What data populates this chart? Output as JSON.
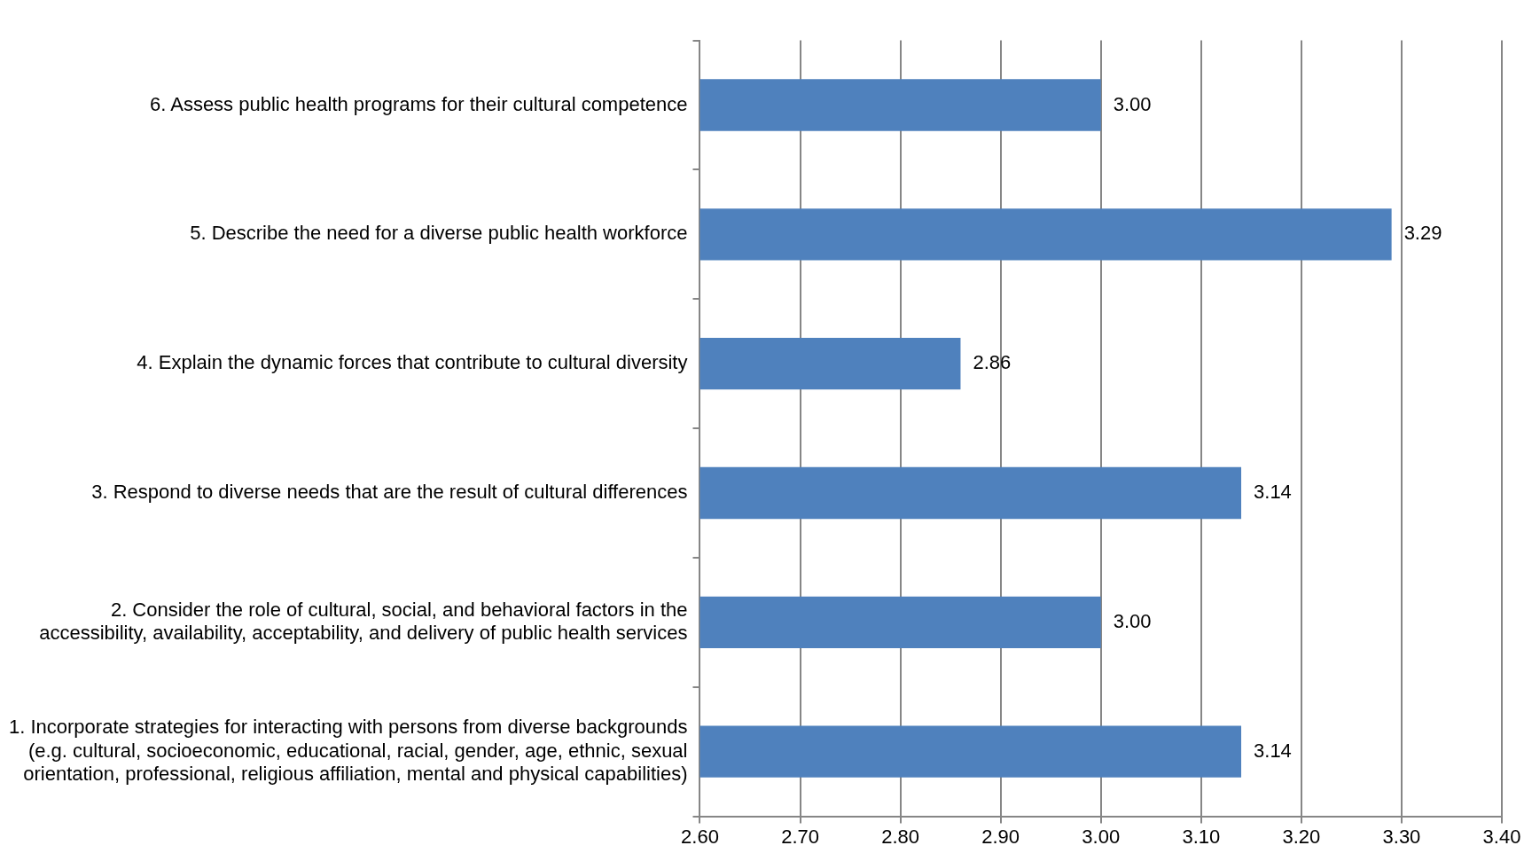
{
  "chart_data": {
    "type": "bar",
    "orientation": "horizontal",
    "categories": [
      "6. Assess public health programs for their cultural competence",
      "5. Describe the need for a diverse public health workforce",
      "4. Explain the dynamic forces that contribute to cultural diversity",
      "3. Respond to diverse needs that are the result of cultural differences",
      "2. Consider the role of cultural, social, and behavioral factors in the accessibility, availability, acceptability, and delivery of public health services",
      "1. Incorporate strategies for interacting with persons from diverse backgrounds (e.g. cultural, socioeconomic, educational, racial, gender, age, ethnic, sexual orientation, professional, religious affiliation, mental and physical capabilities)"
    ],
    "values": [
      3.0,
      3.29,
      2.86,
      3.14,
      3.0,
      3.14
    ],
    "value_labels": [
      "3.00",
      "3.29",
      "2.86",
      "3.14",
      "3.00",
      "3.14"
    ],
    "color": "#4f81bd",
    "xlim": [
      2.6,
      3.4
    ],
    "xticks": [
      {
        "value": 2.6,
        "label": "2.60"
      },
      {
        "value": 2.7,
        "label": "2.70"
      },
      {
        "value": 2.8,
        "label": "2.80"
      },
      {
        "value": 2.9,
        "label": "2.90"
      },
      {
        "value": 3.0,
        "label": "3.00"
      },
      {
        "value": 3.1,
        "label": "3.10"
      },
      {
        "value": 3.2,
        "label": "3.20"
      },
      {
        "value": 3.3,
        "label": "3.30"
      },
      {
        "value": 3.4,
        "label": "3.40"
      }
    ],
    "grid": "x",
    "legend": false
  }
}
